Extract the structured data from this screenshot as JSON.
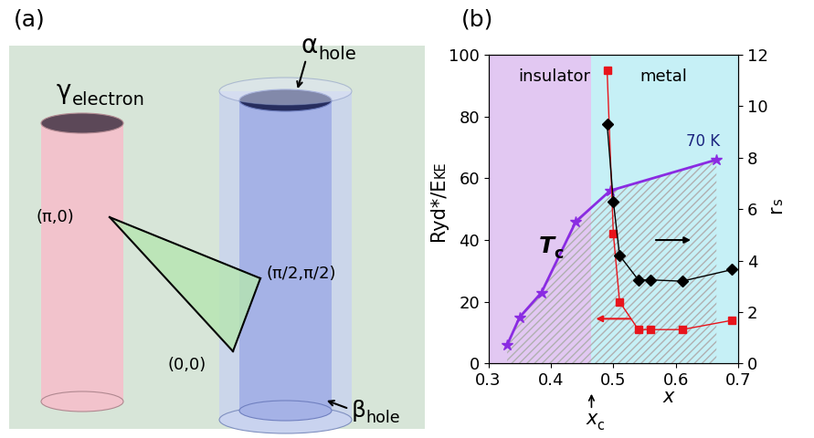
{
  "diagram": {
    "label": "(a)",
    "cylinders": [
      {
        "symbol": "γ",
        "subscript": "electron"
      },
      {
        "symbol": "α",
        "subscript": "hole"
      },
      {
        "symbol": "β",
        "subscript": "hole"
      }
    ],
    "points": [
      "(π,0)",
      "(π/2,π/2)",
      "(0,0)"
    ]
  },
  "chart_data": {
    "type": "line",
    "panel_label": "(b)",
    "xlabel": "x",
    "ylabel": {
      "text": "Ryd*/E",
      "subscript": "KE"
    },
    "y2label": {
      "text": "r",
      "subscript": "s"
    },
    "xlim": [
      0.3,
      0.7
    ],
    "xticks": [
      0.3,
      0.4,
      0.5,
      0.6,
      0.7
    ],
    "ylim": [
      0,
      100
    ],
    "yticks": [
      0,
      20,
      40,
      60,
      80,
      100
    ],
    "y2lim": [
      0,
      12
    ],
    "y2ticks": [
      0,
      2,
      4,
      6,
      8,
      10,
      12
    ],
    "x_c": {
      "text": "x",
      "subscript": "c",
      "value": 0.465
    },
    "regions": [
      {
        "label": "insulator",
        "color": "#e2c8f2"
      },
      {
        "label": "metal",
        "color": "#c6f0f6"
      }
    ],
    "series": [
      {
        "name": {
          "text": "T",
          "subscript": "c"
        },
        "color": "#8a2be2",
        "marker": "star",
        "line_style": "solid",
        "annotation": "70 K",
        "x": [
          0.33,
          0.35,
          0.385,
          0.44,
          0.495,
          0.665
        ],
        "values": [
          6,
          15,
          23,
          46,
          56,
          66
        ]
      },
      {
        "color": "#e8141b",
        "marker": "square",
        "line_style": "solid",
        "x": [
          0.49,
          0.5,
          0.51,
          0.54,
          0.56,
          0.61,
          0.69
        ],
        "values": [
          95,
          42,
          20,
          11,
          11,
          11,
          14
        ]
      },
      {
        "color": "#000000",
        "marker": "diamond",
        "line_style": "solid",
        "axis": "y2",
        "x": [
          0.49,
          0.5,
          0.51,
          0.54,
          0.56,
          0.61,
          0.69
        ],
        "values": [
          9.3,
          6.3,
          4.2,
          3.25,
          3.25,
          3.2,
          3.65
        ]
      }
    ]
  }
}
